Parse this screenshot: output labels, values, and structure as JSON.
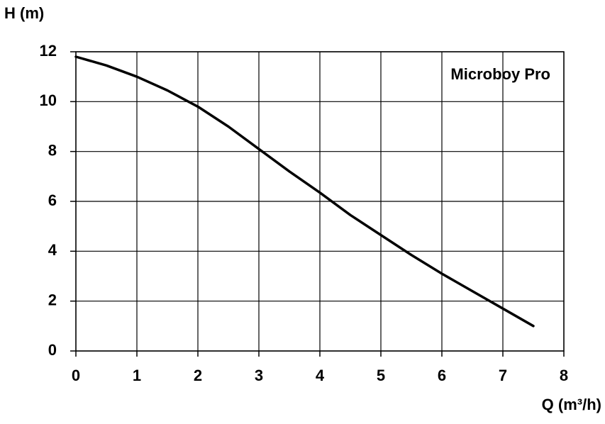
{
  "chart_data": {
    "type": "line",
    "y_label": "H (m)",
    "x_label": "Q (m³/h)",
    "annotation": "Microboy Pro",
    "x": [
      0,
      0.5,
      1,
      1.5,
      2,
      2.5,
      3,
      3.5,
      4,
      4.5,
      5,
      5.5,
      6,
      6.5,
      7,
      7.5
    ],
    "values": [
      11.8,
      11.45,
      11.0,
      10.45,
      9.8,
      9.0,
      8.1,
      7.2,
      6.35,
      5.45,
      4.65,
      3.85,
      3.1,
      2.4,
      1.7,
      1.0
    ],
    "color": "#000000",
    "xlim": [
      0,
      8
    ],
    "ylim": [
      0,
      12
    ],
    "xticks": [
      0,
      1,
      2,
      3,
      4,
      5,
      6,
      7,
      8
    ],
    "yticks": [
      0,
      2,
      4,
      6,
      8,
      10,
      12
    ],
    "grid": true
  }
}
